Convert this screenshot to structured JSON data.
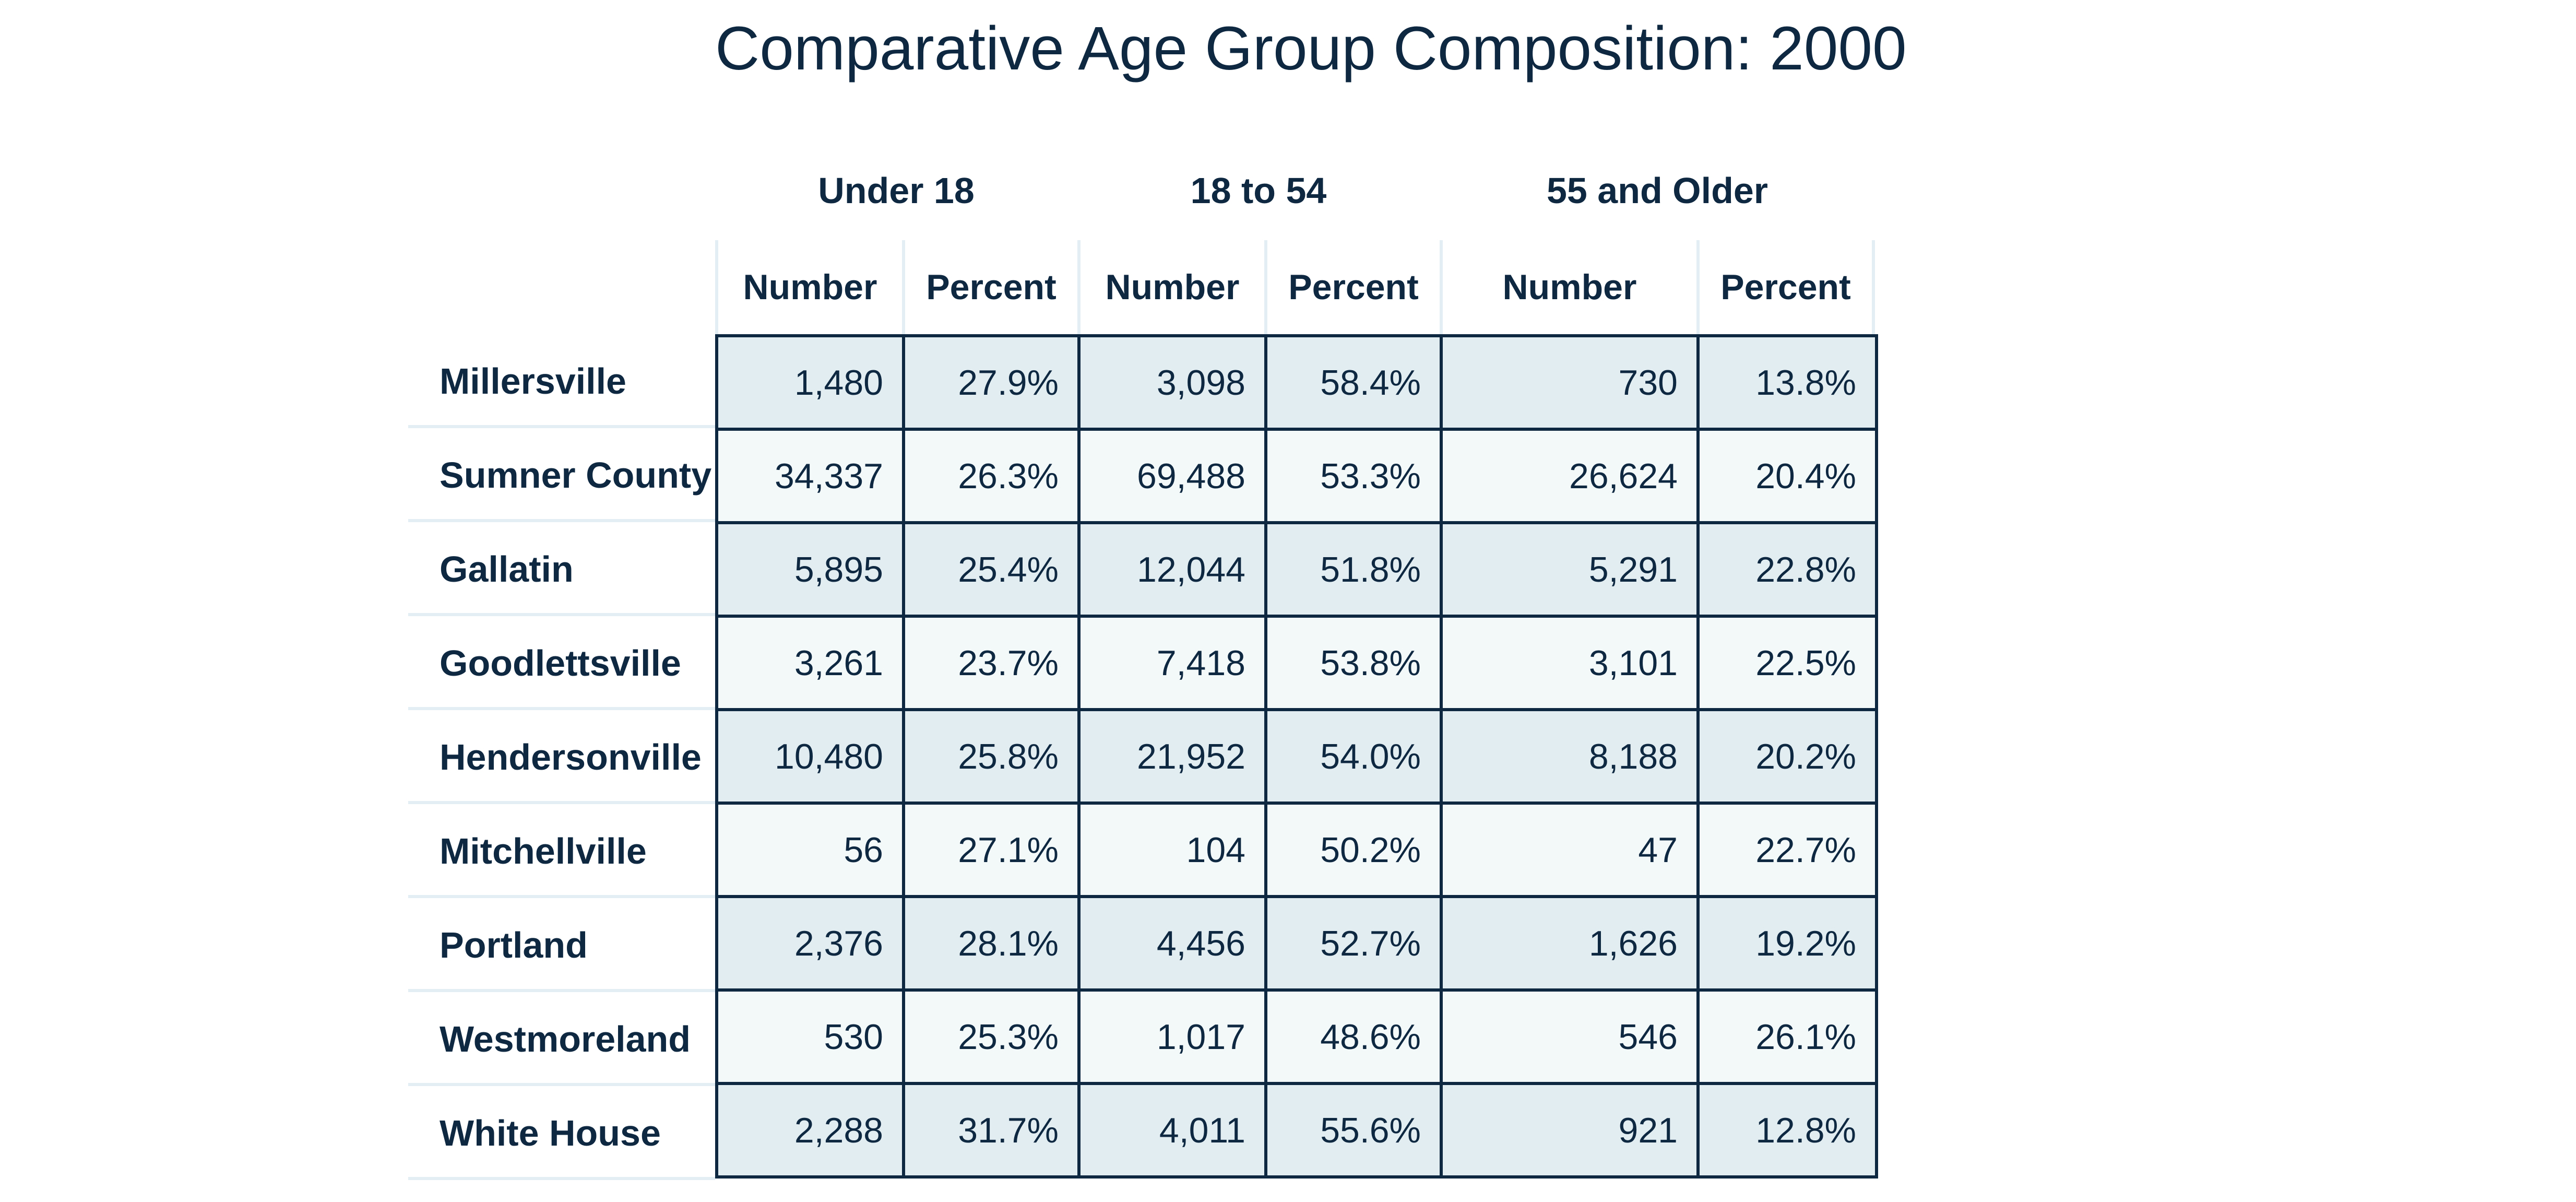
{
  "title": "Comparative Age Group Composition: 2000",
  "groups": [
    "Under 18",
    "18 to 54",
    "55 and Older"
  ],
  "sub_headers": [
    "Number",
    "Percent",
    "Number",
    "Percent",
    "Number",
    "Percent"
  ],
  "rows": [
    {
      "place": "Millersville",
      "cells": [
        "1,480",
        "27.9%",
        "3,098",
        "58.4%",
        "730",
        "13.8%"
      ]
    },
    {
      "place": "Sumner County",
      "cells": [
        "34,337",
        "26.3%",
        "69,488",
        "53.3%",
        "26,624",
        "20.4%"
      ]
    },
    {
      "place": "Gallatin",
      "cells": [
        "5,895",
        "25.4%",
        "12,044",
        "51.8%",
        "5,291",
        "22.8%"
      ]
    },
    {
      "place": "Goodlettsville",
      "cells": [
        "3,261",
        "23.7%",
        "7,418",
        "53.8%",
        "3,101",
        "22.5%"
      ]
    },
    {
      "place": "Hendersonville",
      "cells": [
        "10,480",
        "25.8%",
        "21,952",
        "54.0%",
        "8,188",
        "20.2%"
      ]
    },
    {
      "place": "Mitchellville",
      "cells": [
        "56",
        "27.1%",
        "104",
        "50.2%",
        "47",
        "22.7%"
      ]
    },
    {
      "place": "Portland",
      "cells": [
        "2,376",
        "28.1%",
        "4,456",
        "52.7%",
        "1,626",
        "19.2%"
      ]
    },
    {
      "place": "Westmoreland",
      "cells": [
        "530",
        "25.3%",
        "1,017",
        "48.6%",
        "546",
        "26.1%"
      ]
    },
    {
      "place": "White House",
      "cells": [
        "2,288",
        "31.7%",
        "4,011",
        "55.6%",
        "921",
        "12.8%"
      ]
    }
  ],
  "colors": {
    "text": "#0e2841",
    "row_shaded": "#e2edf2",
    "row_light": "#f3f8f9",
    "grid_dark": "#0e2841",
    "grid_light": "#e3eef4"
  }
}
